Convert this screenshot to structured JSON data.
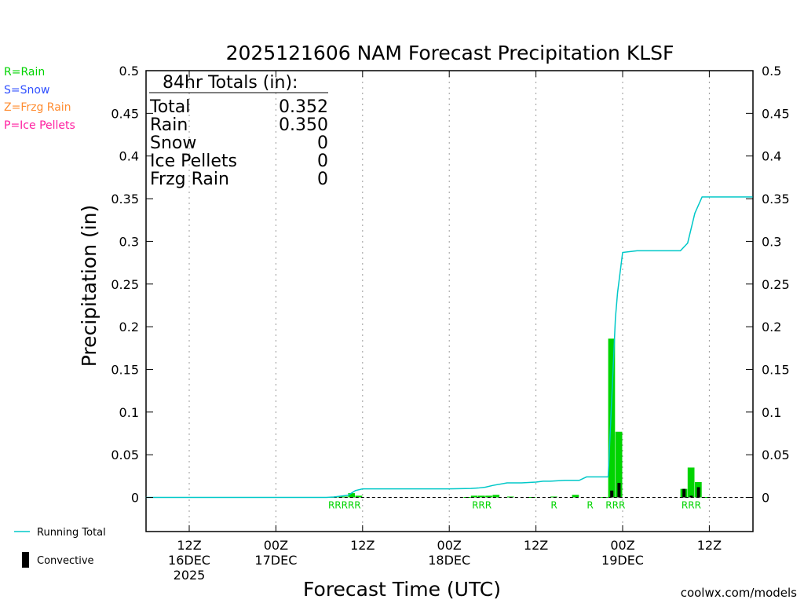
{
  "colors": {
    "rain": "#00d400",
    "snow": "#3050ff",
    "frzg": "#ff8c30",
    "ice": "#ff1fa0",
    "running": "#00c8c8",
    "convective": "#000000",
    "credit": "#e0203a"
  },
  "chart_data": {
    "type": "bar",
    "title": "2025121606 NAM Forecast Precipitation KLSF",
    "xlabel": "Forecast Time (UTC)",
    "ylabel": "Precipitation (in)",
    "ylim": [
      -0.04,
      0.5
    ],
    "xlim_hours": [
      6,
      90
    ],
    "yticks": [
      "0",
      "0.05",
      "0.1",
      "0.15",
      "0.2",
      "0.25",
      "0.3",
      "0.35",
      "0.4",
      "0.45",
      "0.5"
    ],
    "ytick_values": [
      0,
      0.05,
      0.1,
      0.15,
      0.2,
      0.25,
      0.3,
      0.35,
      0.4,
      0.45,
      0.5
    ],
    "xticks": [
      {
        "hour": 12,
        "lines": [
          "12Z",
          "16DEC",
          "2025"
        ]
      },
      {
        "hour": 24,
        "lines": [
          "00Z",
          "17DEC"
        ]
      },
      {
        "hour": 36,
        "lines": [
          "12Z"
        ]
      },
      {
        "hour": 48,
        "lines": [
          "00Z",
          "18DEC"
        ]
      },
      {
        "hour": 60,
        "lines": [
          "12Z"
        ]
      },
      {
        "hour": 72,
        "lines": [
          "00Z",
          "19DEC"
        ]
      },
      {
        "hour": 84,
        "lines": [
          "12Z"
        ]
      }
    ],
    "grid": "vertical dotted",
    "legend": {
      "types": [
        "R=Rain",
        "S=Snow",
        "Z=Frzg Rain",
        "P=Ice Pellets"
      ],
      "running_total": "Running Total",
      "convective": "Convective"
    },
    "totals": {
      "heading": "84hr Totals (in):",
      "rows": [
        {
          "label": "Total",
          "value": "0.352"
        },
        {
          "label": "Rain",
          "value": "0.350"
        },
        {
          "label": "Snow",
          "value": "0"
        },
        {
          "label": "Ice Pellets",
          "value": "0"
        },
        {
          "label": "Frzg Rain",
          "value": "0"
        }
      ]
    },
    "series": [
      {
        "name": "Rain",
        "hours": [
          32,
          33,
          34,
          35,
          36,
          51,
          52,
          53,
          54,
          55,
          57,
          60,
          63,
          66,
          70,
          71,
          72,
          81,
          82,
          83,
          84
        ],
        "values": [
          0.0005,
          0.001,
          0.001,
          0.005,
          0.002,
          0.0005,
          0.002,
          0.002,
          0.002,
          0.003,
          0.001,
          0.0005,
          0.001,
          0.003,
          0.0005,
          0.186,
          0.077,
          0.01,
          0.035,
          0.018,
          0.0005
        ]
      },
      {
        "name": "Convective",
        "hours": [
          71,
          72,
          81,
          82,
          83
        ],
        "values": [
          0.008,
          0.017,
          0.01,
          0.002,
          0.012
        ]
      },
      {
        "name": "Running Total",
        "hours": [
          6,
          31,
          32,
          33,
          34,
          35,
          36,
          48,
          51,
          52,
          53,
          54,
          56,
          58,
          60,
          61,
          62,
          64,
          66,
          67,
          69,
          70,
          71,
          71.3,
          72,
          74,
          76,
          78,
          79,
          80,
          81,
          82,
          83,
          90
        ],
        "values": [
          0,
          0,
          0.0005,
          0.0015,
          0.0025,
          0.008,
          0.01,
          0.01,
          0.0105,
          0.011,
          0.012,
          0.014,
          0.017,
          0.017,
          0.018,
          0.019,
          0.019,
          0.02,
          0.02,
          0.024,
          0.024,
          0.024,
          0.21,
          0.24,
          0.287,
          0.289,
          0.289,
          0.289,
          0.289,
          0.289,
          0.298,
          0.333,
          0.352,
          0.352
        ]
      }
    ],
    "type_labels": [
      {
        "text": "RRRRR",
        "hours": [
          32,
          36
        ]
      },
      {
        "text": "RRR",
        "hours": [
          51,
          55
        ]
      },
      {
        "text": "R",
        "hours": [
          63,
          63
        ]
      },
      {
        "text": "R",
        "hours": [
          68,
          68
        ]
      },
      {
        "text": "RRR",
        "hours": [
          71,
          72
        ]
      },
      {
        "text": "RRR",
        "hours": [
          81,
          83
        ]
      }
    ]
  },
  "credit": "coolwx.com/models"
}
